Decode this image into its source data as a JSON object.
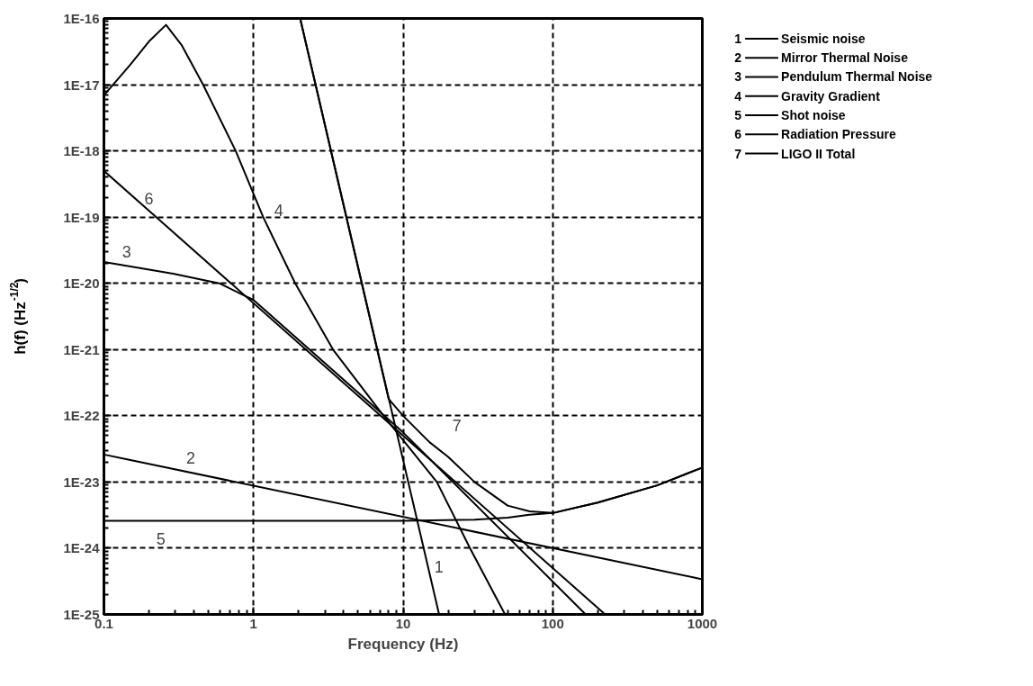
{
  "chart_data": {
    "type": "line",
    "xlabel": "Frequency (Hz)",
    "ylabel": "h(f) (Hz$^{-1/2}$)",
    "log": "xy",
    "grid": true,
    "legend": "right",
    "marker": "none",
    "line_style": "solid",
    "xlim": [
      0.1,
      1000
    ],
    "ylim": [
      1e-25,
      1e-16
    ],
    "xticks": [
      0.1,
      1,
      10,
      100,
      1000
    ],
    "yticks": [
      {
        "value": 1e-25,
        "label": "1E-25"
      },
      {
        "value": 1e-24,
        "label": "1E-24"
      },
      {
        "value": 1e-23,
        "label": "1E-23"
      },
      {
        "value": 1e-22,
        "label": "1E-22"
      },
      {
        "value": 1e-21,
        "label": "1E-21"
      },
      {
        "value": 1e-20,
        "label": "1E-20"
      },
      {
        "value": 1e-19,
        "label": "1E-19"
      },
      {
        "value": 1e-18,
        "label": "1E-18"
      },
      {
        "value": 1e-17,
        "label": "1E-17"
      },
      {
        "value": 1e-16,
        "label": "1E-16"
      }
    ],
    "series": [
      {
        "name": "Seismic noise",
        "color": "#000000",
        "x": [
          2.05,
          17.4
        ],
        "values": [
          1e-16,
          1e-25
        ]
      },
      {
        "name": "Mirror Thermal Noise",
        "color": "#000000",
        "x": [
          0.1,
          1000
        ],
        "values": [
          2.6e-23,
          3.4e-25
        ]
      },
      {
        "name": "Pendulum Thermal Noise",
        "color": "#000000",
        "x": [
          0.1,
          0.29,
          0.59,
          1,
          10,
          166
        ],
        "values": [
          2.1e-20,
          1.4e-20,
          1e-20,
          5.6e-21,
          5.6e-23,
          1e-25
        ]
      },
      {
        "name": "Gravity Gradient",
        "color": "#000000",
        "x": [
          0.1,
          0.15,
          0.2,
          0.26,
          0.33,
          0.46,
          0.76,
          1.16,
          1.9,
          3.4,
          7.4,
          16.8,
          28,
          48
        ],
        "values": [
          6.9e-18,
          2e-17,
          4.5e-17,
          8e-17,
          4e-17,
          1e-17,
          1e-18,
          1e-19,
          1e-20,
          1e-21,
          1e-22,
          1e-23,
          1e-24,
          1e-25
        ]
      },
      {
        "name": "Shot noise",
        "color": "#000000",
        "x": [
          0.1,
          10,
          30,
          50,
          70,
          100,
          200,
          500,
          1000
        ],
        "values": [
          2.6e-24,
          2.6e-24,
          2.7e-24,
          2.9e-24,
          3.2e-24,
          3.4e-24,
          4.9e-24,
          8.9e-24,
          1.65e-23
        ]
      },
      {
        "name": "Radiation Pressure",
        "color": "#000000",
        "x": [
          0.1,
          224
        ],
        "values": [
          5e-19,
          1e-25
        ]
      },
      {
        "name": "LIGO II Total",
        "color": "#000000",
        "x": [
          2.05,
          4,
          8,
          10,
          15,
          20,
          30,
          50,
          70,
          100,
          200,
          500,
          1000
        ],
        "values": [
          1e-16,
          1.5e-19,
          1.8e-22,
          1e-22,
          4e-23,
          2.4e-23,
          1e-23,
          4.4e-24,
          3.6e-24,
          3.4e-24,
          4.9e-24,
          8.9e-24,
          1.65e-23
        ]
      }
    ],
    "annotations": [
      "1",
      "2",
      "3",
      "4",
      "5",
      "6",
      "7"
    ]
  }
}
